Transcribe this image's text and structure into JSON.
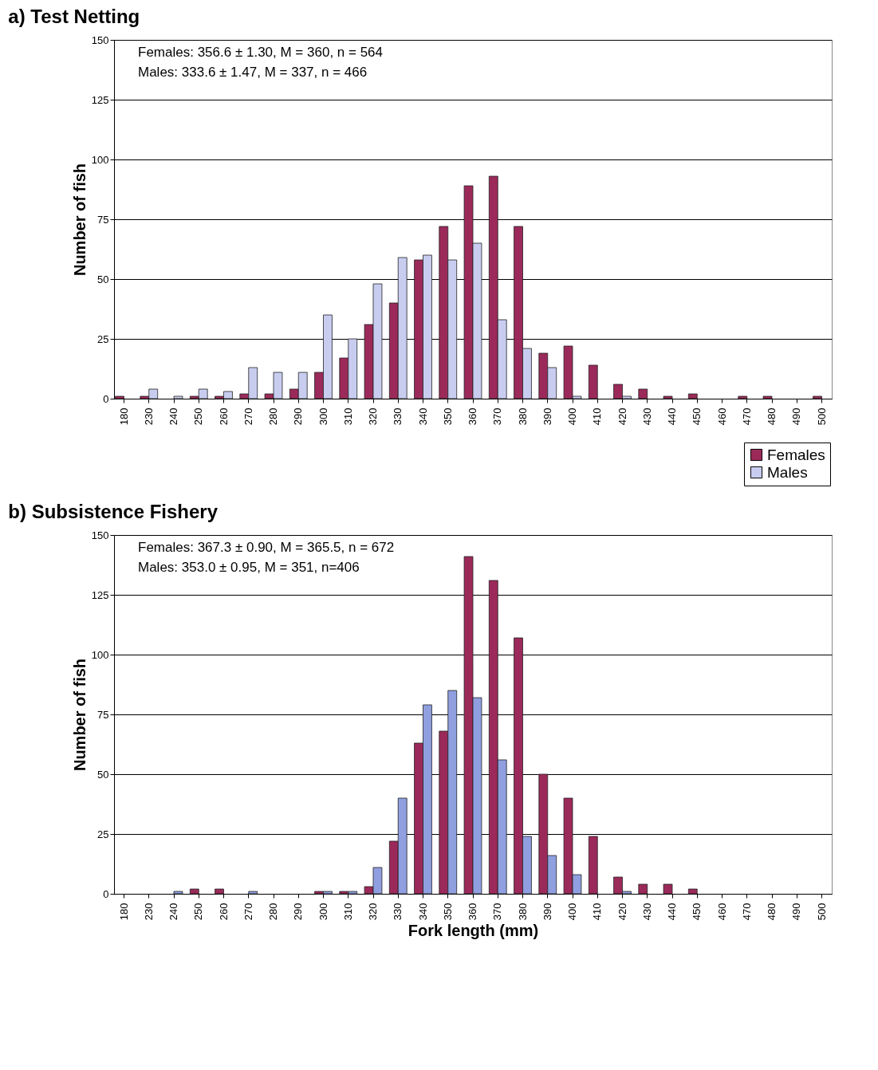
{
  "chart_data": [
    {
      "type": "bar",
      "title": "a) Test Netting",
      "ylabel": "Number of fish",
      "categories": [
        "180",
        "230",
        "240",
        "250",
        "260",
        "270",
        "280",
        "290",
        "300",
        "310",
        "320",
        "330",
        "340",
        "350",
        "360",
        "370",
        "380",
        "390",
        "400",
        "410",
        "420",
        "430",
        "440",
        "450",
        "460",
        "470",
        "480",
        "490",
        "500"
      ],
      "series": [
        {
          "name": "Females",
          "color": "#9b2a5a",
          "values": [
            1,
            1,
            0,
            1,
            1,
            2,
            2,
            4,
            11,
            17,
            31,
            40,
            58,
            72,
            89,
            93,
            72,
            19,
            22,
            14,
            6,
            4,
            1,
            2,
            0,
            1,
            1,
            0,
            1
          ]
        },
        {
          "name": "Males",
          "color": "#c8cdf0",
          "values": [
            0,
            4,
            1,
            4,
            3,
            13,
            11,
            11,
            35,
            25,
            48,
            59,
            60,
            58,
            65,
            33,
            21,
            13,
            1,
            0,
            1,
            0,
            0,
            0,
            0,
            0,
            0,
            0,
            0
          ]
        }
      ],
      "ylim": [
        0,
        150
      ],
      "yticks": [
        0,
        25,
        50,
        75,
        100,
        125,
        150
      ],
      "grid": "y",
      "legend": "bottom right",
      "annotations": [
        "Females: 356.6 ± 1.30, M = 360, n = 564",
        "Males: 333.6 ± 1.47, M = 337, n = 466"
      ]
    },
    {
      "type": "bar",
      "title": "b) Subsistence Fishery",
      "ylabel": "Number of fish",
      "xlabel": "Fork length (mm)",
      "categories": [
        "180",
        "230",
        "240",
        "250",
        "260",
        "270",
        "280",
        "290",
        "300",
        "310",
        "320",
        "330",
        "340",
        "350",
        "360",
        "370",
        "380",
        "390",
        "400",
        "410",
        "420",
        "430",
        "440",
        "450",
        "460",
        "470",
        "480",
        "490",
        "500"
      ],
      "series": [
        {
          "color": "#9b2a5a",
          "values": [
            0,
            0,
            0,
            2,
            2,
            0,
            0,
            0,
            1,
            1,
            3,
            22,
            63,
            68,
            141,
            131,
            107,
            50,
            40,
            24,
            7,
            4,
            4,
            2,
            0,
            0,
            0,
            0,
            0
          ]
        },
        {
          "color": "#8f9fdf",
          "values": [
            0,
            0,
            1,
            0,
            0,
            1,
            0,
            0,
            1,
            1,
            11,
            40,
            79,
            85,
            82,
            56,
            24,
            16,
            8,
            0,
            1,
            0,
            0,
            0,
            0,
            0,
            0,
            0,
            0
          ]
        }
      ],
      "ylim": [
        0,
        150
      ],
      "yticks": [
        0,
        25,
        50,
        75,
        100,
        125,
        150
      ],
      "grid": "y",
      "annotations": [
        "Females: 367.3 ± 0.90, M = 365.5, n = 672",
        "Males: 353.0 ± 0.95, M = 351, n=406"
      ]
    }
  ]
}
